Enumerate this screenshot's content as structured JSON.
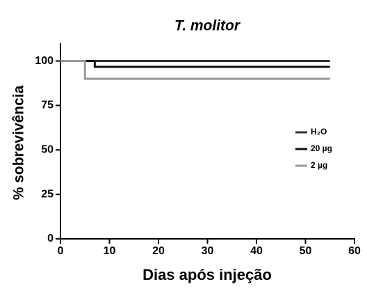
{
  "chart_data": {
    "type": "line",
    "step": true,
    "title": "T. molitor",
    "xlabel": "Dias após injeção",
    "ylabel": "% sobrevivência",
    "xlim": [
      0,
      60
    ],
    "xticks": [
      0,
      10,
      20,
      30,
      40,
      50,
      60
    ],
    "ylim": [
      0,
      110
    ],
    "yticks": [
      0,
      25,
      50,
      75,
      100
    ],
    "series": [
      {
        "name": "H₂O",
        "color": "#333333",
        "x": [
          0,
          55
        ],
        "values": [
          100,
          100
        ]
      },
      {
        "name": "20 µg",
        "color": "#111111",
        "x": [
          0,
          7,
          55
        ],
        "values": [
          100,
          96.7,
          96.7
        ]
      },
      {
        "name": "2 µg",
        "color": "#999999",
        "x": [
          0,
          5,
          55
        ],
        "values": [
          100,
          90,
          90
        ]
      }
    ]
  }
}
